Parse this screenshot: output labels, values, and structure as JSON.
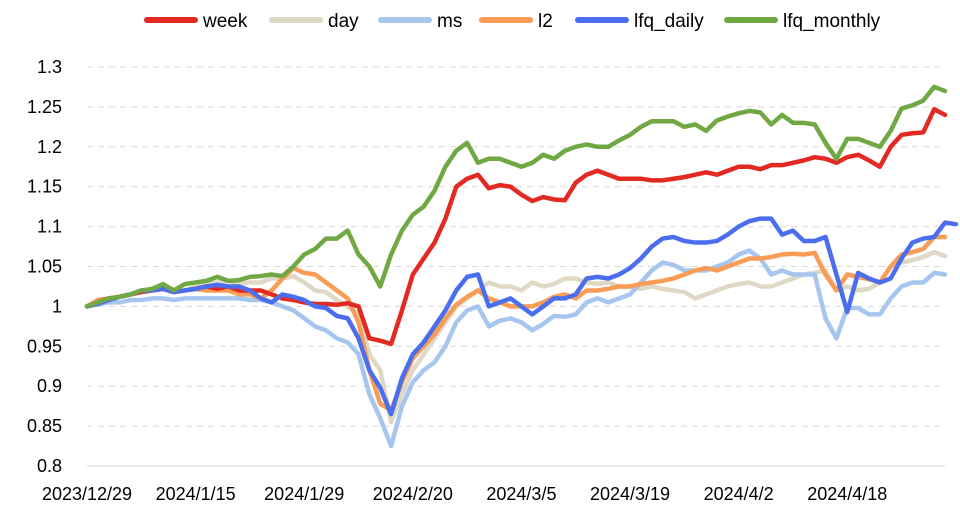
{
  "chart_data": {
    "type": "line",
    "title": "",
    "xlabel": "",
    "ylabel": "",
    "ylim": [
      0.8,
      1.3
    ],
    "yticks": [
      0.8,
      0.85,
      0.9,
      0.95,
      1,
      1.05,
      1.1,
      1.15,
      1.2,
      1.25,
      1.3
    ],
    "ytick_labels": [
      "0.8",
      "0.85",
      "0.9",
      "0.95",
      "1",
      "1.05",
      "1.1",
      "1.15",
      "1.2",
      "1.25",
      "1.3"
    ],
    "xtick_labels": [
      "2023/12/29",
      "2024/1/15",
      "2024/1/29",
      "2024/2/20",
      "2024/3/5",
      "2024/3/19",
      "2024/4/2",
      "2024/4/18"
    ],
    "xtick_positions": [
      0,
      10,
      20,
      30,
      40,
      50,
      60,
      70
    ],
    "x_range": [
      0,
      79
    ],
    "grid": "horizontal dashed",
    "legend_position": "top",
    "series": [
      {
        "name": "week",
        "color": "#e32a22",
        "values": [
          1.0,
          1.005,
          1.01,
          1.012,
          1.015,
          1.018,
          1.02,
          1.022,
          1.018,
          1.02,
          1.022,
          1.025,
          1.022,
          1.025,
          1.02,
          1.02,
          1.02,
          1.015,
          1.01,
          1.008,
          1.005,
          1.003,
          1.003,
          1.002,
          1.004,
          1.0,
          0.96,
          0.957,
          0.953,
          0.995,
          1.04,
          1.06,
          1.08,
          1.11,
          1.15,
          1.16,
          1.165,
          1.148,
          1.152,
          1.15,
          1.14,
          1.132,
          1.137,
          1.134,
          1.133,
          1.155,
          1.165,
          1.17,
          1.165,
          1.16,
          1.16,
          1.16,
          1.158,
          1.158,
          1.16,
          1.162,
          1.165,
          1.168,
          1.165,
          1.17,
          1.175,
          1.175,
          1.172,
          1.177,
          1.177,
          1.18,
          1.183,
          1.187,
          1.185,
          1.18,
          1.187,
          1.19,
          1.183,
          1.175,
          1.2,
          1.215,
          1.217,
          1.218,
          1.247,
          1.24
        ]
      },
      {
        "name": "day",
        "color": "#ded8c5",
        "values": [
          1.0,
          1.005,
          1.01,
          1.012,
          1.015,
          1.018,
          1.02,
          1.022,
          1.018,
          1.02,
          1.025,
          1.028,
          1.03,
          1.032,
          1.028,
          1.03,
          1.03,
          1.035,
          1.035,
          1.038,
          1.03,
          1.02,
          1.018,
          1.008,
          1.0,
          0.99,
          0.94,
          0.92,
          0.855,
          0.89,
          0.92,
          0.94,
          0.96,
          0.98,
          1.0,
          1.01,
          1.02,
          1.03,
          1.025,
          1.025,
          1.02,
          1.03,
          1.025,
          1.028,
          1.035,
          1.035,
          1.03,
          1.028,
          1.03,
          1.025,
          1.025,
          1.022,
          1.025,
          1.022,
          1.02,
          1.018,
          1.01,
          1.015,
          1.02,
          1.025,
          1.028,
          1.03,
          1.025,
          1.025,
          1.03,
          1.035,
          1.04,
          1.042,
          1.045,
          1.02,
          1.025,
          1.02,
          1.022,
          1.03,
          1.05,
          1.055,
          1.058,
          1.062,
          1.068,
          1.063
        ]
      },
      {
        "name": "ms",
        "color": "#a7c6ef",
        "values": [
          1.0,
          1.003,
          1.005,
          1.005,
          1.008,
          1.008,
          1.01,
          1.01,
          1.008,
          1.01,
          1.01,
          1.01,
          1.01,
          1.01,
          1.01,
          1.008,
          1.008,
          1.005,
          1.0,
          0.995,
          0.985,
          0.975,
          0.97,
          0.96,
          0.955,
          0.94,
          0.89,
          0.86,
          0.825,
          0.875,
          0.905,
          0.92,
          0.93,
          0.95,
          0.98,
          0.995,
          1.0,
          0.975,
          0.982,
          0.985,
          0.98,
          0.97,
          0.978,
          0.988,
          0.987,
          0.99,
          1.005,
          1.01,
          1.005,
          1.01,
          1.015,
          1.03,
          1.045,
          1.055,
          1.052,
          1.045,
          1.045,
          1.045,
          1.05,
          1.055,
          1.065,
          1.07,
          1.06,
          1.04,
          1.045,
          1.04,
          1.04,
          1.04,
          0.985,
          0.96,
          0.998,
          0.998,
          0.99,
          0.99,
          1.01,
          1.025,
          1.03,
          1.03,
          1.042,
          1.04
        ]
      },
      {
        "name": "l2",
        "color": "#f89c56",
        "values": [
          1.0,
          1.008,
          1.01,
          1.012,
          1.015,
          1.02,
          1.02,
          1.022,
          1.018,
          1.02,
          1.022,
          1.02,
          1.02,
          1.02,
          1.015,
          1.015,
          1.01,
          1.02,
          1.035,
          1.048,
          1.042,
          1.04,
          1.03,
          1.02,
          1.01,
          0.98,
          0.92,
          0.878,
          0.87,
          0.905,
          0.935,
          0.95,
          0.965,
          0.985,
          1.002,
          1.012,
          1.02,
          1.01,
          1.005,
          1.0,
          1.0,
          1.0,
          1.005,
          1.012,
          1.015,
          1.01,
          1.02,
          1.02,
          1.022,
          1.025,
          1.025,
          1.028,
          1.03,
          1.032,
          1.035,
          1.04,
          1.045,
          1.048,
          1.045,
          1.05,
          1.055,
          1.06,
          1.06,
          1.062,
          1.065,
          1.066,
          1.065,
          1.067,
          1.04,
          1.02,
          1.04,
          1.037,
          1.034,
          1.03,
          1.05,
          1.065,
          1.068,
          1.072,
          1.087,
          1.087
        ]
      },
      {
        "name": "lfq_daily",
        "color": "#4b6eef",
        "values": [
          1.0,
          1.003,
          1.008,
          1.012,
          1.015,
          1.02,
          1.02,
          1.022,
          1.018,
          1.02,
          1.022,
          1.025,
          1.027,
          1.025,
          1.025,
          1.02,
          1.01,
          1.005,
          1.015,
          1.012,
          1.008,
          1.0,
          0.998,
          0.988,
          0.985,
          0.96,
          0.92,
          0.898,
          0.865,
          0.91,
          0.94,
          0.955,
          0.975,
          0.995,
          1.02,
          1.037,
          1.04,
          1.0,
          1.005,
          1.01,
          1.0,
          0.99,
          1.0,
          1.01,
          1.01,
          1.015,
          1.035,
          1.037,
          1.035,
          1.04,
          1.048,
          1.06,
          1.075,
          1.085,
          1.087,
          1.082,
          1.08,
          1.08,
          1.082,
          1.09,
          1.1,
          1.107,
          1.11,
          1.11,
          1.09,
          1.095,
          1.082,
          1.082,
          1.087,
          1.04,
          0.993,
          1.042,
          1.035,
          1.03,
          1.035,
          1.06,
          1.08,
          1.085,
          1.087,
          1.105,
          1.103
        ]
      },
      {
        "name": "lfq_monthly",
        "color": "#70a844",
        "values": [
          1.0,
          1.005,
          1.01,
          1.012,
          1.015,
          1.02,
          1.022,
          1.028,
          1.02,
          1.028,
          1.03,
          1.032,
          1.037,
          1.032,
          1.033,
          1.037,
          1.038,
          1.04,
          1.038,
          1.05,
          1.065,
          1.072,
          1.085,
          1.085,
          1.095,
          1.065,
          1.05,
          1.025,
          1.065,
          1.095,
          1.115,
          1.125,
          1.145,
          1.175,
          1.195,
          1.205,
          1.18,
          1.185,
          1.185,
          1.18,
          1.175,
          1.18,
          1.19,
          1.185,
          1.195,
          1.2,
          1.203,
          1.2,
          1.2,
          1.208,
          1.215,
          1.225,
          1.232,
          1.232,
          1.232,
          1.225,
          1.228,
          1.22,
          1.233,
          1.238,
          1.242,
          1.245,
          1.243,
          1.228,
          1.24,
          1.23,
          1.23,
          1.228,
          1.205,
          1.185,
          1.21,
          1.21,
          1.205,
          1.2,
          1.22,
          1.248,
          1.252,
          1.258,
          1.275,
          1.27
        ]
      }
    ]
  }
}
